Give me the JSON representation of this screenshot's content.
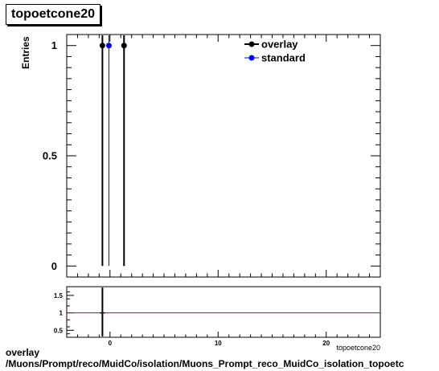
{
  "title": "topoetcone20",
  "footer": {
    "line1": "overlay",
    "line2": "/Muons/Prompt/reco/MuidCo/isolation/Muons_Prompt_reco_MuidCo_isolation_topoetc"
  },
  "chart_data": [
    {
      "type": "scatter",
      "title": "topoetcone20",
      "xlabel": "topoetcone20",
      "ylabel": "Entries",
      "xlim": [
        -4,
        25
      ],
      "ylim": [
        -0.05,
        1.05
      ],
      "yticks": [
        0,
        0.5,
        1
      ],
      "ytick_labels": [
        "0",
        "0.5",
        "1"
      ],
      "legend": "top-right",
      "colors": {
        "overlay": "#000000",
        "standard": "#0000ff"
      },
      "series": [
        {
          "name": "overlay",
          "x": [
            -0.7,
            1.3
          ],
          "y": [
            1,
            1
          ]
        },
        {
          "name": "standard",
          "x": [
            -0.1
          ],
          "y": [
            1
          ]
        }
      ]
    },
    {
      "type": "line",
      "xlim": [
        -4,
        25
      ],
      "ylim": [
        0.3,
        1.75
      ],
      "xticks": [
        0,
        10,
        20
      ],
      "xtick_labels": [
        "0",
        "10",
        "20"
      ],
      "yticks": [
        0.5,
        1,
        1.5
      ],
      "ytick_labels": [
        "0.5",
        "1",
        "1.5"
      ],
      "reference_line": 1,
      "reference_color": "#cc0000",
      "series": [
        {
          "x": [
            -0.7
          ],
          "y": [
            1
          ]
        }
      ]
    }
  ]
}
